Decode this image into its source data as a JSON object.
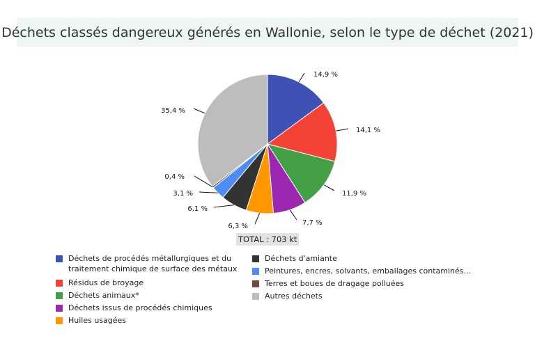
{
  "chart_data": {
    "type": "pie",
    "title": "Déchets classés dangereux générés en Wallonie, selon le type de déchet (2021)",
    "total_label": "TOTAL : 703 kt",
    "legend_placement": "bottom",
    "slices": [
      {
        "name": "Déchets de procédés métallurgiques et du traitement chimique de surface des métaux",
        "value": 14.9,
        "label": "14,9 %",
        "color": "#3f51b5"
      },
      {
        "name": "Résidus de broyage",
        "value": 14.1,
        "label": "14,1 %",
        "color": "#f44336"
      },
      {
        "name": "Déchets animaux*",
        "value": 11.9,
        "label": "11,9 %",
        "color": "#43a047"
      },
      {
        "name": "Déchets issus de procédés chimiques",
        "value": 7.7,
        "label": "7,7 %",
        "color": "#9c27b0"
      },
      {
        "name": "Huiles usagées",
        "value": 6.3,
        "label": "6,3 %",
        "color": "#ff9800"
      },
      {
        "name": "Déchets d'amiante",
        "value": 6.1,
        "label": "6,1 %",
        "color": "#333333"
      },
      {
        "name": "Peintures, encres, solvants, emballages contaminés...",
        "value": 3.1,
        "label": "3,1 %",
        "color": "#4d8cf5"
      },
      {
        "name": "Terres et boues de dragage polluées",
        "value": 0.4,
        "label": "0,4 %",
        "color": "#6d4c41"
      },
      {
        "name": "Autres déchets",
        "value": 35.4,
        "label": "35,4 %",
        "color": "#bdbdbd"
      }
    ]
  }
}
